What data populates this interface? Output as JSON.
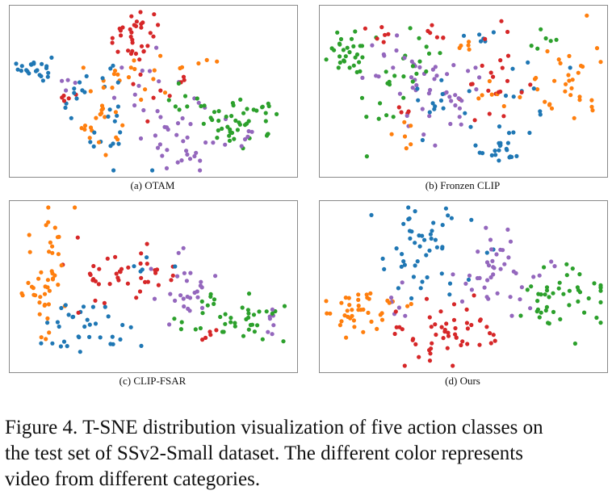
{
  "figure": {
    "caption_lines": [
      "Figure 4. T-SNE distribution visualization of five action classes on",
      "the test set of SSv2-Small dataset.  The different color represents",
      "video from different categories."
    ]
  },
  "colors": {
    "blue": "#1f77b4",
    "orange": "#ff7f0e",
    "green": "#2ca02c",
    "red": "#d62728",
    "purple": "#9467bd"
  },
  "chart_data": [
    {
      "type": "scatter",
      "title": "(a) OTAM",
      "xlabel": "",
      "ylabel": "",
      "xlim": [
        0,
        100
      ],
      "ylim": [
        0,
        100
      ],
      "clusters": [
        {
          "class": "blue",
          "blobs": [
            [
              7,
              65,
              3,
              4,
              22
            ],
            [
              25,
              50,
              6,
              12,
              14
            ],
            [
              35,
              30,
              10,
              20,
              16
            ]
          ]
        },
        {
          "class": "orange",
          "blobs": [
            [
              32,
              35,
              4,
              12,
              14
            ],
            [
              42,
              62,
              5,
              8,
              16
            ],
            [
              26,
              25,
              4,
              5,
              8
            ],
            [
              65,
              68,
              4,
              4,
              5
            ]
          ]
        },
        {
          "class": "red",
          "blobs": [
            [
              43,
              85,
              5,
              8,
              34
            ],
            [
              18,
              45,
              4,
              3,
              5
            ],
            [
              55,
              50,
              6,
              10,
              8
            ]
          ]
        },
        {
          "class": "purple",
          "blobs": [
            [
              60,
              15,
              5,
              8,
              20
            ],
            [
              52,
              45,
              8,
              14,
              22
            ],
            [
              82,
              18,
              5,
              8,
              8
            ],
            [
              20,
              55,
              3,
              4,
              4
            ]
          ]
        },
        {
          "class": "green",
          "blobs": [
            [
              82,
              30,
              8,
              7,
              44
            ],
            [
              62,
              40,
              5,
              5,
              10
            ]
          ]
        }
      ]
    },
    {
      "type": "scatter",
      "title": "(b) Fronzen CLIP",
      "xlabel": "",
      "ylabel": "",
      "xlim": [
        0,
        100
      ],
      "ylim": [
        0,
        100
      ],
      "clusters": [
        {
          "class": "green",
          "blobs": [
            [
              8,
              75,
              4,
              8,
              30
            ],
            [
              22,
              45,
              4,
              12,
              14
            ],
            [
              35,
              72,
              4,
              12,
              12
            ],
            [
              78,
              80,
              3,
              6,
              6
            ]
          ]
        },
        {
          "class": "blue",
          "blobs": [
            [
              63,
              15,
              4,
              6,
              22
            ],
            [
              40,
              40,
              6,
              12,
              12
            ],
            [
              72,
              55,
              6,
              12,
              12
            ],
            [
              55,
              85,
              5,
              5,
              6
            ]
          ]
        },
        {
          "class": "purple",
          "blobs": [
            [
              42,
              45,
              8,
              14,
              34
            ],
            [
              30,
              70,
              6,
              12,
              12
            ],
            [
              20,
              55,
              4,
              4,
              5
            ]
          ]
        },
        {
          "class": "orange",
          "blobs": [
            [
              85,
              60,
              8,
              14,
              32
            ],
            [
              30,
              20,
              3,
              5,
              6
            ],
            [
              60,
              50,
              4,
              6,
              6
            ],
            [
              50,
              78,
              4,
              6,
              5
            ]
          ]
        },
        {
          "class": "red",
          "blobs": [
            [
              62,
              60,
              6,
              18,
              22
            ],
            [
              18,
              82,
              4,
              5,
              6
            ],
            [
              38,
              88,
              4,
              5,
              6
            ],
            [
              30,
              40,
              3,
              4,
              4
            ]
          ]
        }
      ]
    },
    {
      "type": "scatter",
      "title": "(c) CLIP-FSAR",
      "xlabel": "",
      "ylabel": "",
      "xlim": [
        0,
        100
      ],
      "ylim": [
        0,
        100
      ],
      "clusters": [
        {
          "class": "orange",
          "blobs": [
            [
              12,
              58,
              5,
              22,
              46
            ]
          ]
        },
        {
          "class": "red",
          "blobs": [
            [
              35,
              60,
              10,
              12,
              34
            ],
            [
              50,
              50,
              4,
              6,
              6
            ],
            [
              70,
              20,
              3,
              4,
              5
            ]
          ]
        },
        {
          "class": "blue",
          "blobs": [
            [
              28,
              20,
              8,
              10,
              28
            ],
            [
              16,
              32,
              3,
              6,
              6
            ],
            [
              50,
              60,
              4,
              5,
              5
            ]
          ]
        },
        {
          "class": "purple",
          "blobs": [
            [
              62,
              48,
              6,
              10,
              26
            ],
            [
              92,
              30,
              2,
              6,
              7
            ]
          ]
        },
        {
          "class": "green",
          "blobs": [
            [
              82,
              30,
              8,
              8,
              36
            ],
            [
              62,
              22,
              3,
              4,
              5
            ]
          ]
        }
      ]
    },
    {
      "type": "scatter",
      "title": "(d) Ours",
      "xlabel": "",
      "ylabel": "",
      "xlim": [
        0,
        100
      ],
      "ylim": [
        0,
        100
      ],
      "clusters": [
        {
          "class": "blue",
          "blobs": [
            [
              33,
              72,
              10,
              16,
              50
            ]
          ]
        },
        {
          "class": "orange",
          "blobs": [
            [
              13,
              33,
              7,
              8,
              40
            ]
          ]
        },
        {
          "class": "red",
          "blobs": [
            [
              45,
              22,
              10,
              10,
              52
            ]
          ]
        },
        {
          "class": "purple",
          "blobs": [
            [
              62,
              58,
              8,
              12,
              42
            ],
            [
              28,
              40,
              3,
              5,
              6
            ]
          ]
        },
        {
          "class": "green",
          "blobs": [
            [
              86,
              42,
              8,
              12,
              46
            ]
          ]
        }
      ]
    }
  ]
}
